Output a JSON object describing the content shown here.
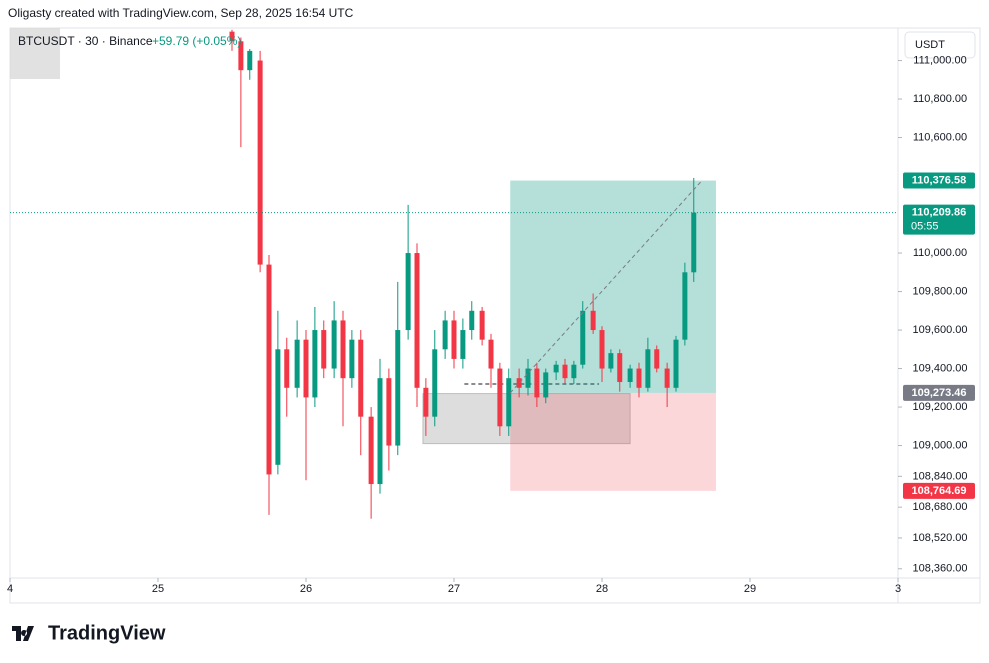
{
  "header": {
    "attribution": "Oligasty created with TradingView.com, Sep 28, 2025 16:54 UTC",
    "symbol": "BTCUSDT · 30 · Binance",
    "change": "+59.79 (+0.05%)",
    "currency": "USDT",
    "brand": "TradingView"
  },
  "chart_data": {
    "type": "candlestick",
    "x": [
      25.5,
      25.56,
      25.62,
      25.69,
      25.75,
      25.81,
      25.87,
      25.94,
      26.0,
      26.06,
      26.12,
      26.19,
      26.25,
      26.31,
      26.37,
      26.44,
      26.5,
      26.56,
      26.62,
      26.69,
      26.75,
      26.81,
      26.87,
      26.94,
      27.0,
      27.06,
      27.12,
      27.19,
      27.25,
      27.31,
      27.37,
      27.44,
      27.5,
      27.56,
      27.62,
      27.69,
      27.75,
      27.81,
      27.87,
      27.94,
      28.0,
      28.06,
      28.12,
      28.19,
      28.25,
      28.31,
      28.37,
      28.44,
      28.5,
      28.56,
      28.62
    ],
    "open": [
      111150,
      111100,
      110950,
      111000,
      109940,
      108900,
      109500,
      109300,
      109550,
      109250,
      109600,
      109400,
      109650,
      109350,
      109550,
      109150,
      108800,
      109350,
      109000,
      109600,
      110000,
      109300,
      109150,
      109500,
      109650,
      109450,
      109600,
      109700,
      109550,
      109400,
      109100,
      109350,
      109300,
      109400,
      109250,
      109380,
      109420,
      109350,
      109420,
      109700,
      109600,
      109400,
      109480,
      109330,
      109400,
      109300,
      109500,
      109400,
      109300,
      109550,
      109900
    ],
    "high": [
      111160,
      111120,
      111060,
      111050,
      109990,
      109700,
      109560,
      109650,
      109600,
      109720,
      109650,
      109750,
      109700,
      109600,
      109600,
      109200,
      109450,
      109400,
      109850,
      110250,
      110050,
      109350,
      109600,
      109700,
      109700,
      109660,
      109750,
      109720,
      109580,
      109430,
      109400,
      109400,
      109450,
      109430,
      109400,
      109440,
      109450,
      109440,
      109750,
      109790,
      109620,
      109500,
      109500,
      109420,
      109430,
      109560,
      109520,
      109430,
      109570,
      109950,
      110390
    ],
    "low": [
      111050,
      110550,
      110900,
      109900,
      108640,
      108850,
      109150,
      109250,
      108820,
      109200,
      109350,
      109350,
      109100,
      109300,
      108950,
      108620,
      108750,
      108870,
      108950,
      109550,
      109200,
      109050,
      109100,
      109450,
      109400,
      109400,
      109550,
      109520,
      109300,
      109050,
      109050,
      109250,
      109260,
      109200,
      109220,
      109340,
      109320,
      109320,
      109400,
      109580,
      109330,
      109380,
      109280,
      109300,
      109250,
      109280,
      109380,
      109200,
      109280,
      109520,
      109850
    ],
    "close": [
      111100,
      110950,
      111050,
      109940,
      108850,
      109500,
      109300,
      109550,
      109250,
      109600,
      109400,
      109650,
      109350,
      109550,
      109150,
      108800,
      109350,
      109000,
      109600,
      110000,
      109300,
      109150,
      109500,
      109650,
      109450,
      109600,
      109700,
      109550,
      109400,
      109100,
      109350,
      109300,
      109400,
      109250,
      109380,
      109420,
      109350,
      109420,
      109700,
      109600,
      109400,
      109480,
      109330,
      109400,
      109300,
      109500,
      109400,
      109300,
      109550,
      109900,
      110209.86
    ],
    "up_color": "#089981",
    "down_color": "#f23645",
    "xlim": [
      24,
      30
    ],
    "ylim": [
      108312,
      111169
    ],
    "xticks": [
      {
        "value": 24,
        "label": "4"
      },
      25,
      26,
      27,
      28,
      29,
      {
        "value": 30,
        "label": "3"
      }
    ],
    "yticks": [
      {
        "value": 111000,
        "label": "111,000.00"
      },
      {
        "value": 110800,
        "label": "110,800.00"
      },
      {
        "value": 110600,
        "label": "110,600.00"
      },
      {
        "value": 110000,
        "label": "110,000.00"
      },
      {
        "value": 109800,
        "label": "109,800.00"
      },
      {
        "value": 109600,
        "label": "109,600.00"
      },
      {
        "value": 109400,
        "label": "109,400.00"
      },
      {
        "value": 109200,
        "label": "109,200.00"
      },
      {
        "value": 109000,
        "label": "109,000.00"
      },
      {
        "value": 108840,
        "label": "108,840.00"
      },
      {
        "value": 108680,
        "label": "108,680.00"
      },
      {
        "value": 108520,
        "label": "108,520.00"
      },
      {
        "value": 108360,
        "label": "108,360.00"
      }
    ],
    "last_price": {
      "value": 110209.86,
      "label": "110,209.86",
      "countdown": "05:55"
    },
    "position": {
      "x": [
        27.38,
        28.77
      ],
      "target": {
        "value": 110376.58,
        "label": "110,376.58"
      },
      "entry": {
        "value": 109273.46,
        "label": "109,273.46"
      },
      "stop": {
        "value": 108764.69,
        "label": "108,764.69"
      }
    },
    "range_box": {
      "x": [
        26.79,
        28.19
      ],
      "y": [
        109010,
        109270
      ]
    },
    "level": {
      "x": [
        27.07,
        27.98
      ],
      "value": 109320
    }
  }
}
